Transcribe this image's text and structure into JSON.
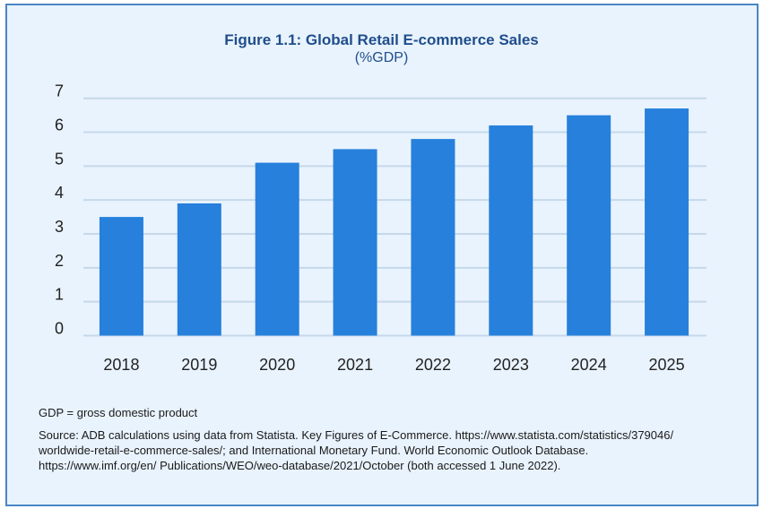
{
  "chart_data": {
    "type": "bar",
    "title": "Figure 1.1: Global Retail E-commerce Sales",
    "subtitle": "(%GDP)",
    "categories": [
      "2018",
      "2019",
      "2020",
      "2021",
      "2022",
      "2023",
      "2024",
      "2025"
    ],
    "values": [
      3.5,
      3.9,
      5.1,
      5.5,
      5.8,
      6.2,
      6.5,
      6.7
    ],
    "xlabel": "",
    "ylabel": "",
    "ylim": [
      0,
      7
    ],
    "yticks": [
      "0",
      "1",
      "2",
      "3",
      "4",
      "5",
      "6",
      "7"
    ],
    "grid": true,
    "legend": "none",
    "bar_color": "#2680dc",
    "grid_color": "#c5d8ea"
  },
  "notes": {
    "abbreviation": "GDP = gross domestic product",
    "source_lines": [
      "Source: ADB calculations using data from Statista. Key Figures of E-Commerce. https://www.statista.com/statistics/379046/",
      "worldwide-retail-e-commerce-sales/; and International Monetary Fund. World Economic Outlook Database.",
      "https://www.imf.org/en/ Publications/WEO/weo-database/2021/October (both accessed 1 June 2022)."
    ]
  }
}
